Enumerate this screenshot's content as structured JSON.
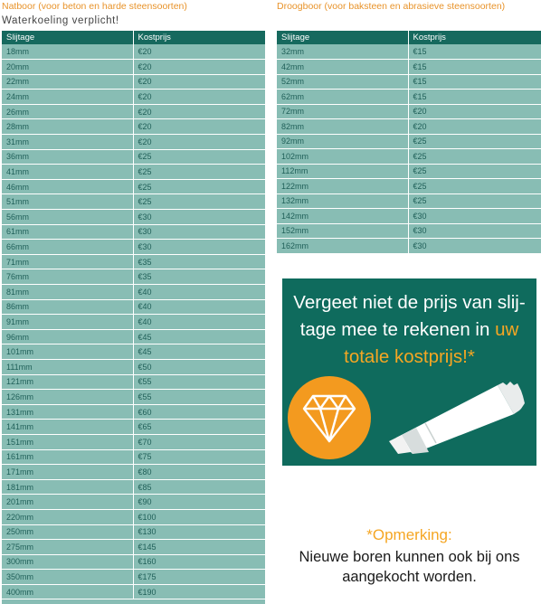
{
  "left": {
    "heading": "Natboor (voor beton en harde steensoorten)",
    "subheading": "Waterkoeling verplicht!",
    "columns": [
      "Slijtage",
      "Kostprijs"
    ],
    "rows": [
      [
        "18mm",
        "€20"
      ],
      [
        "20mm",
        "€20"
      ],
      [
        "22mm",
        "€20"
      ],
      [
        "24mm",
        "€20"
      ],
      [
        "26mm",
        "€20"
      ],
      [
        "28mm",
        "€20"
      ],
      [
        "31mm",
        "€20"
      ],
      [
        "36mm",
        "€25"
      ],
      [
        "41mm",
        "€25"
      ],
      [
        "46mm",
        "€25"
      ],
      [
        "51mm",
        "€25"
      ],
      [
        "56mm",
        "€30"
      ],
      [
        "61mm",
        "€30"
      ],
      [
        "66mm",
        "€30"
      ],
      [
        "71mm",
        "€35"
      ],
      [
        "76mm",
        "€35"
      ],
      [
        "81mm",
        "€40"
      ],
      [
        "86mm",
        "€40"
      ],
      [
        "91mm",
        "€40"
      ],
      [
        "96mm",
        "€45"
      ],
      [
        "101mm",
        "€45"
      ],
      [
        "111mm",
        "€50"
      ],
      [
        "121mm",
        "€55"
      ],
      [
        "126mm",
        "€55"
      ],
      [
        "131mm",
        "€60"
      ],
      [
        "141mm",
        "€65"
      ],
      [
        "151mm",
        "€70"
      ],
      [
        "161mm",
        "€75"
      ],
      [
        "171mm",
        "€80"
      ],
      [
        "181mm",
        "€85"
      ],
      [
        "201mm",
        "€90"
      ],
      [
        "220mm",
        "€100"
      ],
      [
        "250mm",
        "€130"
      ],
      [
        "275mm",
        "€145"
      ],
      [
        "300mm",
        "€160"
      ],
      [
        "350mm",
        "€175"
      ],
      [
        "400mm",
        "€190"
      ]
    ]
  },
  "right": {
    "heading": "Droogboor (voor baksteen en abrasieve steensoorten)",
    "columns": [
      "Slijtage",
      "Kostprijs"
    ],
    "rows": [
      [
        "32mm",
        "€15"
      ],
      [
        "42mm",
        "€15"
      ],
      [
        "52mm",
        "€15"
      ],
      [
        "62mm",
        "€15"
      ],
      [
        "72mm",
        "€20"
      ],
      [
        "82mm",
        "€20"
      ],
      [
        "92mm",
        "€25"
      ],
      [
        "102mm",
        "€25"
      ],
      [
        "112mm",
        "€25"
      ],
      [
        "122mm",
        "€25"
      ],
      [
        "132mm",
        "€25"
      ],
      [
        "142mm",
        "€30"
      ],
      [
        "152mm",
        "€30"
      ],
      [
        "162mm",
        "€30"
      ]
    ]
  },
  "promo": {
    "line1": "Vergeet niet de prijs van slij-",
    "line2_a": "tage mee te rekenen in ",
    "line2_b": "uw",
    "line3": "totale kostprijs!*",
    "icons": [
      "diamond-icon",
      "core-drill-icon"
    ]
  },
  "note": {
    "title": "*Opmerking:",
    "line1": "Nieuwe boren kunnen ook bij ons",
    "line2": "aangekocht worden."
  },
  "colors": {
    "header_green": "#16695e",
    "row_teal": "#88bdb4",
    "accent_orange": "#f5a623",
    "promo_green": "#0f6b5d"
  }
}
